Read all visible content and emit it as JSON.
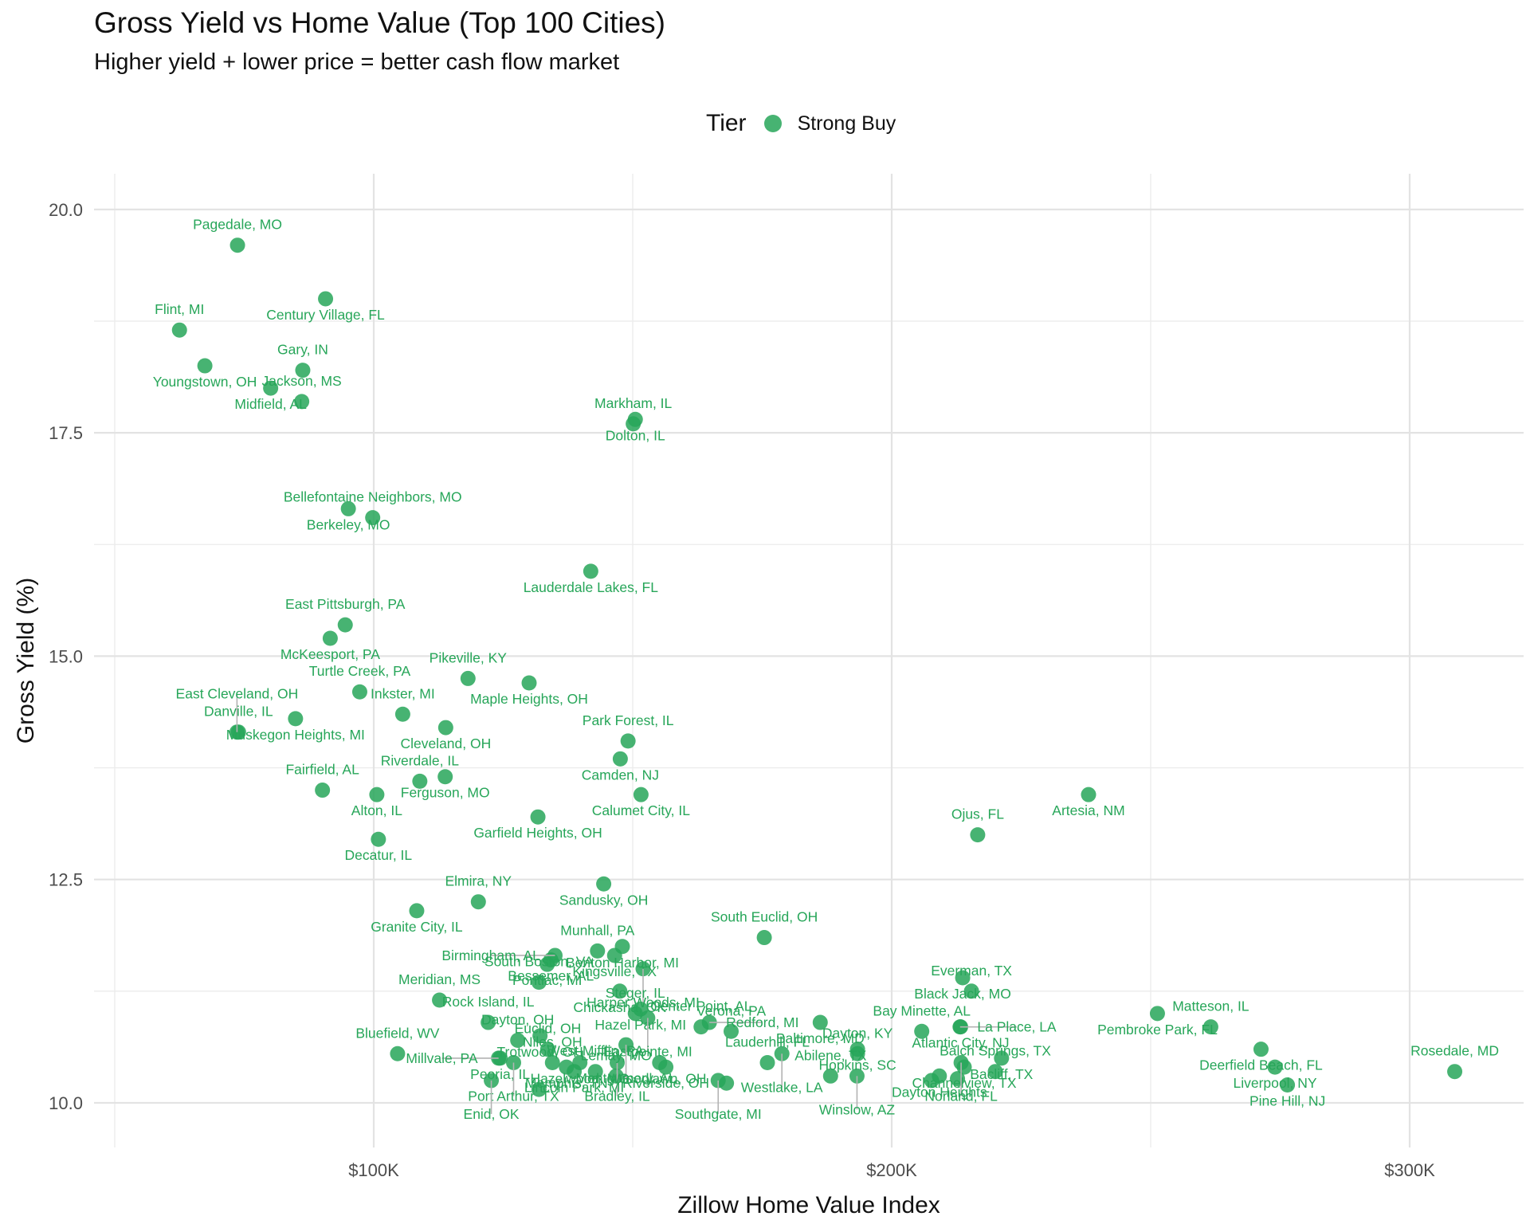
{
  "chart_data": {
    "type": "scatter",
    "title": "Gross Yield vs Home Value (Top 100 Cities)",
    "subtitle": "Higher yield + lower price = better cash flow market",
    "xlabel": "Zillow Home Value Index",
    "ylabel": "Gross Yield (%)",
    "xlim": [
      46000,
      322000
    ],
    "ylim": [
      9.5,
      20.4
    ],
    "x_ticks": [
      100000,
      200000,
      300000
    ],
    "x_tick_labels": [
      "$100K",
      "$200K",
      "$300K"
    ],
    "y_ticks": [
      10,
      12.5,
      15,
      17.5,
      20
    ],
    "y_tick_labels": [
      "10.0",
      "12.5",
      "15.0",
      "17.5",
      "20.0"
    ],
    "grid": true,
    "legend": {
      "title": "Tier",
      "position": "top",
      "entries": [
        {
          "label": "Strong Buy",
          "color": "#27a659"
        }
      ]
    },
    "series": [
      {
        "name": "Strong Buy",
        "color": "#27a659",
        "points": [
          {
            "label": "Pagedale, MO",
            "x": 73700,
            "y": 19.6
          },
          {
            "label": "Century Village, FL",
            "x": 90700,
            "y": 19.0
          },
          {
            "label": "Flint, MI",
            "x": 62500,
            "y": 18.65
          },
          {
            "label": "Youngstown, OH",
            "x": 67400,
            "y": 18.25
          },
          {
            "label": "Gary, IN",
            "x": 86300,
            "y": 18.2
          },
          {
            "label": "Midfield, AL",
            "x": 80100,
            "y": 18.0
          },
          {
            "label": "Jackson, MS",
            "x": 86100,
            "y": 17.85
          },
          {
            "label": "Dolton, IL",
            "x": 150500,
            "y": 17.65
          },
          {
            "label": "Markham, IL",
            "x": 150100,
            "y": 17.6
          },
          {
            "label": "Berkeley, MO",
            "x": 95100,
            "y": 16.65
          },
          {
            "label": "Bellefontaine Neighbors, MO",
            "x": 99800,
            "y": 16.55
          },
          {
            "label": "Lauderdale Lakes, FL",
            "x": 141900,
            "y": 15.95
          },
          {
            "label": "East Pittsburgh, PA",
            "x": 94500,
            "y": 15.35
          },
          {
            "label": "McKeesport, PA",
            "x": 91600,
            "y": 15.2
          },
          {
            "label": "Pikeville, KY",
            "x": 118200,
            "y": 14.75
          },
          {
            "label": "Maple Heights, OH",
            "x": 130000,
            "y": 14.7
          },
          {
            "label": "Turtle Creek, PA",
            "x": 97300,
            "y": 14.6
          },
          {
            "label": "Muskegon Heights, MI",
            "x": 84900,
            "y": 14.3
          },
          {
            "label": "Inkster, MI",
            "x": 105600,
            "y": 14.35
          },
          {
            "label": "Danville, IL",
            "x": 73900,
            "y": 14.15
          },
          {
            "label": "East Cleveland, OH",
            "x": 73600,
            "y": 14.15
          },
          {
            "label": "Cleveland, OH",
            "x": 113900,
            "y": 14.2
          },
          {
            "label": "Park Forest, IL",
            "x": 149100,
            "y": 14.05
          },
          {
            "label": "Camden, NJ",
            "x": 147600,
            "y": 13.85
          },
          {
            "label": "Riverdale, IL",
            "x": 108900,
            "y": 13.6
          },
          {
            "label": "Ferguson, MO",
            "x": 113800,
            "y": 13.65
          },
          {
            "label": "Fairfield, AL",
            "x": 90100,
            "y": 13.5
          },
          {
            "label": "Alton, IL",
            "x": 100600,
            "y": 13.45
          },
          {
            "label": "Calumet City, IL",
            "x": 151600,
            "y": 13.45
          },
          {
            "label": "Artesia, NM",
            "x": 238000,
            "y": 13.45
          },
          {
            "label": "Garfield Heights, OH",
            "x": 131700,
            "y": 13.2
          },
          {
            "label": "Decatur, IL",
            "x": 100900,
            "y": 12.95
          },
          {
            "label": "Ojus, FL",
            "x": 216600,
            "y": 13.0
          },
          {
            "label": "Sandusky, OH",
            "x": 144400,
            "y": 12.45
          },
          {
            "label": "Elmira, NY",
            "x": 120200,
            "y": 12.25
          },
          {
            "label": "Granite City, IL",
            "x": 108300,
            "y": 12.15
          },
          {
            "label": "Munhall, PA",
            "x": 143200,
            "y": 11.7
          },
          {
            "label": "Benton Harbor, MI",
            "x": 148000,
            "y": 11.75
          },
          {
            "label": "South Euclid, OH",
            "x": 175400,
            "y": 11.85
          },
          {
            "label": "Pontiac, MI",
            "x": 133500,
            "y": 11.55
          },
          {
            "label": "Birmingham, AL",
            "x": 135000,
            "y": 11.65
          },
          {
            "label": "Kingsville, TX",
            "x": 146500,
            "y": 11.65
          },
          {
            "label": "Harper Woods, MI",
            "x": 152000,
            "y": 11.5
          },
          {
            "label": "Bessemer, AL",
            "x": 134200,
            "y": 11.6
          },
          {
            "label": "Hazel Park, MI",
            "x": 151500,
            "y": 11.05
          },
          {
            "label": "Chickasha, OK",
            "x": 147500,
            "y": 11.25
          },
          {
            "label": "South Boston, VA",
            "x": 131900,
            "y": 11.35
          },
          {
            "label": "Black Jack, MO",
            "x": 213700,
            "y": 11.4
          },
          {
            "label": "Everman, TX",
            "x": 215400,
            "y": 11.25
          },
          {
            "label": "Baltimore, MD",
            "x": 186200,
            "y": 10.9
          },
          {
            "label": "Meridian, MS",
            "x": 112700,
            "y": 11.15
          },
          {
            "label": "Trotwood, OH",
            "x": 132100,
            "y": 10.75
          },
          {
            "label": "Eastpointe, MI",
            "x": 152900,
            "y": 10.95
          },
          {
            "label": "Montgomery, AL",
            "x": 148700,
            "y": 10.65
          },
          {
            "label": "Steger, IL",
            "x": 150500,
            "y": 11.0
          },
          {
            "label": "Hopkins, SC",
            "x": 193400,
            "y": 10.6
          },
          {
            "label": "Atlantic City, NJ",
            "x": 213300,
            "y": 10.85
          },
          {
            "label": "Pembroke Park, FL",
            "x": 251300,
            "y": 11.0
          },
          {
            "label": "Rock Island, IL",
            "x": 122100,
            "y": 10.9
          },
          {
            "label": "Dayton, OH",
            "x": 127800,
            "y": 10.7
          },
          {
            "label": "Center Point, AL",
            "x": 163200,
            "y": 10.85
          },
          {
            "label": "Redford, MI",
            "x": 164800,
            "y": 10.9
          },
          {
            "label": "Verona, PA",
            "x": 169000,
            "y": 10.8
          },
          {
            "label": "Bay Minette, AL",
            "x": 205800,
            "y": 10.8
          },
          {
            "label": "La Place, LA",
            "x": 213200,
            "y": 10.85
          },
          {
            "label": "Matteson, IL",
            "x": 261600,
            "y": 10.85
          },
          {
            "label": "Bluefield, WV",
            "x": 104600,
            "y": 10.55
          },
          {
            "label": "Peoria, IL",
            "x": 124400,
            "y": 10.5
          },
          {
            "label": "Euclid, OH",
            "x": 133600,
            "y": 10.6
          },
          {
            "label": "Westlake, LA",
            "x": 178800,
            "y": 10.55
          },
          {
            "label": "Dayton, KY",
            "x": 193400,
            "y": 10.55
          },
          {
            "label": "Bacliff, TX",
            "x": 221200,
            "y": 10.5
          },
          {
            "label": "Norland, FL",
            "x": 213400,
            "y": 10.45
          },
          {
            "label": "Deerfield Beach, FL",
            "x": 271300,
            "y": 10.6
          },
          {
            "label": "Rosedale, MD",
            "x": 308700,
            "y": 10.35
          },
          {
            "label": "Port Arthur, TX",
            "x": 127000,
            "y": 10.45
          },
          {
            "label": "Niles, OH",
            "x": 134500,
            "y": 10.45
          },
          {
            "label": "Hazelwood, MO",
            "x": 139800,
            "y": 10.45
          },
          {
            "label": "Bradley, IL",
            "x": 147000,
            "y": 10.45
          },
          {
            "label": "Woodlawn, OH",
            "x": 155200,
            "y": 10.45
          },
          {
            "label": "Lauderhill, FL",
            "x": 176000,
            "y": 10.45
          },
          {
            "label": "Liverpool, NY",
            "x": 274000,
            "y": 10.4
          },
          {
            "label": "Millvale, PA",
            "x": 124100,
            "y": 10.5
          },
          {
            "label": "Memphis, TN",
            "x": 137200,
            "y": 10.4
          },
          {
            "label": "West Mifflin, PA",
            "x": 142800,
            "y": 10.35
          },
          {
            "label": "Riverside, OH",
            "x": 156400,
            "y": 10.4
          },
          {
            "label": "Winslow, AZ",
            "x": 193300,
            "y": 10.3
          },
          {
            "label": "Channelview, TX",
            "x": 214000,
            "y": 10.4
          },
          {
            "label": "Balch Springs, TX",
            "x": 220000,
            "y": 10.35
          },
          {
            "label": "Pine Hill, NJ",
            "x": 276400,
            "y": 10.2
          },
          {
            "label": "Enid, OK",
            "x": 122700,
            "y": 10.25
          },
          {
            "label": "Lincoln Park, MI",
            "x": 138700,
            "y": 10.35
          },
          {
            "label": "Lemay, MO",
            "x": 146800,
            "y": 10.3
          },
          {
            "label": "Southgate, MI",
            "x": 166500,
            "y": 10.25
          },
          {
            "label": "Abilene, TX",
            "x": 188200,
            "y": 10.3
          },
          {
            "label": "Dayton Heights",
            "x": 209200,
            "y": 10.3
          },
          {
            "label": "",
            "x": 207700,
            "y": 10.25
          },
          {
            "label": "",
            "x": 212700,
            "y": 10.27
          },
          {
            "label": "",
            "x": 131900,
            "y": 10.15
          },
          {
            "label": "",
            "x": 168100,
            "y": 10.22
          }
        ]
      }
    ]
  }
}
